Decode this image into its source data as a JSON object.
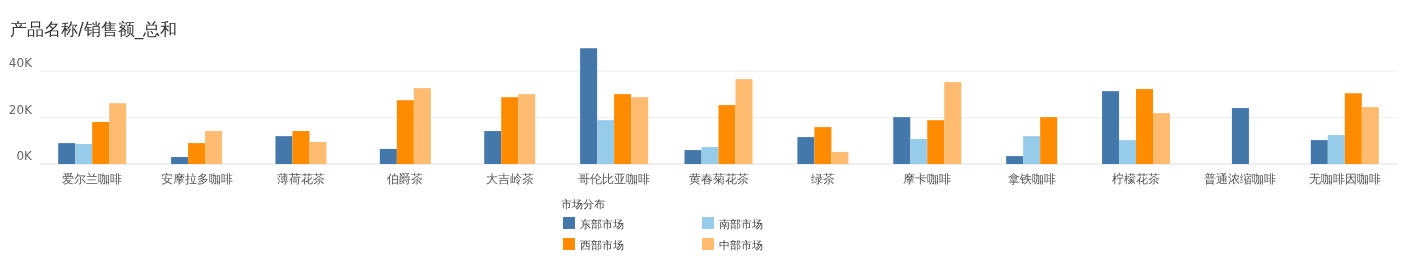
{
  "chart_data": {
    "type": "bar",
    "title": "产品名称/销售额_总和",
    "categories": [
      "爱尔兰咖啡",
      "安摩拉多咖啡",
      "薄荷花茶",
      "伯爵茶",
      "大吉岭茶",
      "哥伦比亚咖啡",
      "黄春菊花茶",
      "绿茶",
      "摩卡咖啡",
      "拿铁咖啡",
      "柠檬花茶",
      "普通浓缩咖啡",
      "无咖啡因咖啡"
    ],
    "series": [
      {
        "name": "东部市场",
        "color": "#4478aa",
        "values": [
          9000,
          3000,
          12000,
          6500,
          14200,
          49900,
          6000,
          11600,
          20200,
          3400,
          31400,
          24100,
          10300
        ]
      },
      {
        "name": "南部市场",
        "color": "#97cbea",
        "values": [
          8600,
          null,
          null,
          null,
          null,
          18900,
          7300,
          null,
          10800,
          12000,
          10300,
          null,
          12500
        ]
      },
      {
        "name": "西部市场",
        "color": "#ff8c00",
        "values": [
          18100,
          9000,
          14200,
          27500,
          28800,
          30100,
          25400,
          15900,
          18900,
          20200,
          32300,
          null,
          30500
        ]
      },
      {
        "name": "中部市场",
        "color": "#ffbb6f",
        "values": [
          26200,
          14200,
          9500,
          32700,
          30100,
          28800,
          36600,
          5200,
          35300,
          null,
          21900,
          null,
          24500
        ]
      }
    ],
    "legend_title": "市场分布",
    "legend": "bottom",
    "ylim": [
      0,
      50000
    ],
    "yticks": [
      {
        "value": 0,
        "label": "0K"
      },
      {
        "value": 20000,
        "label": "20K"
      },
      {
        "value": 40000,
        "label": "40K"
      }
    ],
    "grid": "y"
  }
}
